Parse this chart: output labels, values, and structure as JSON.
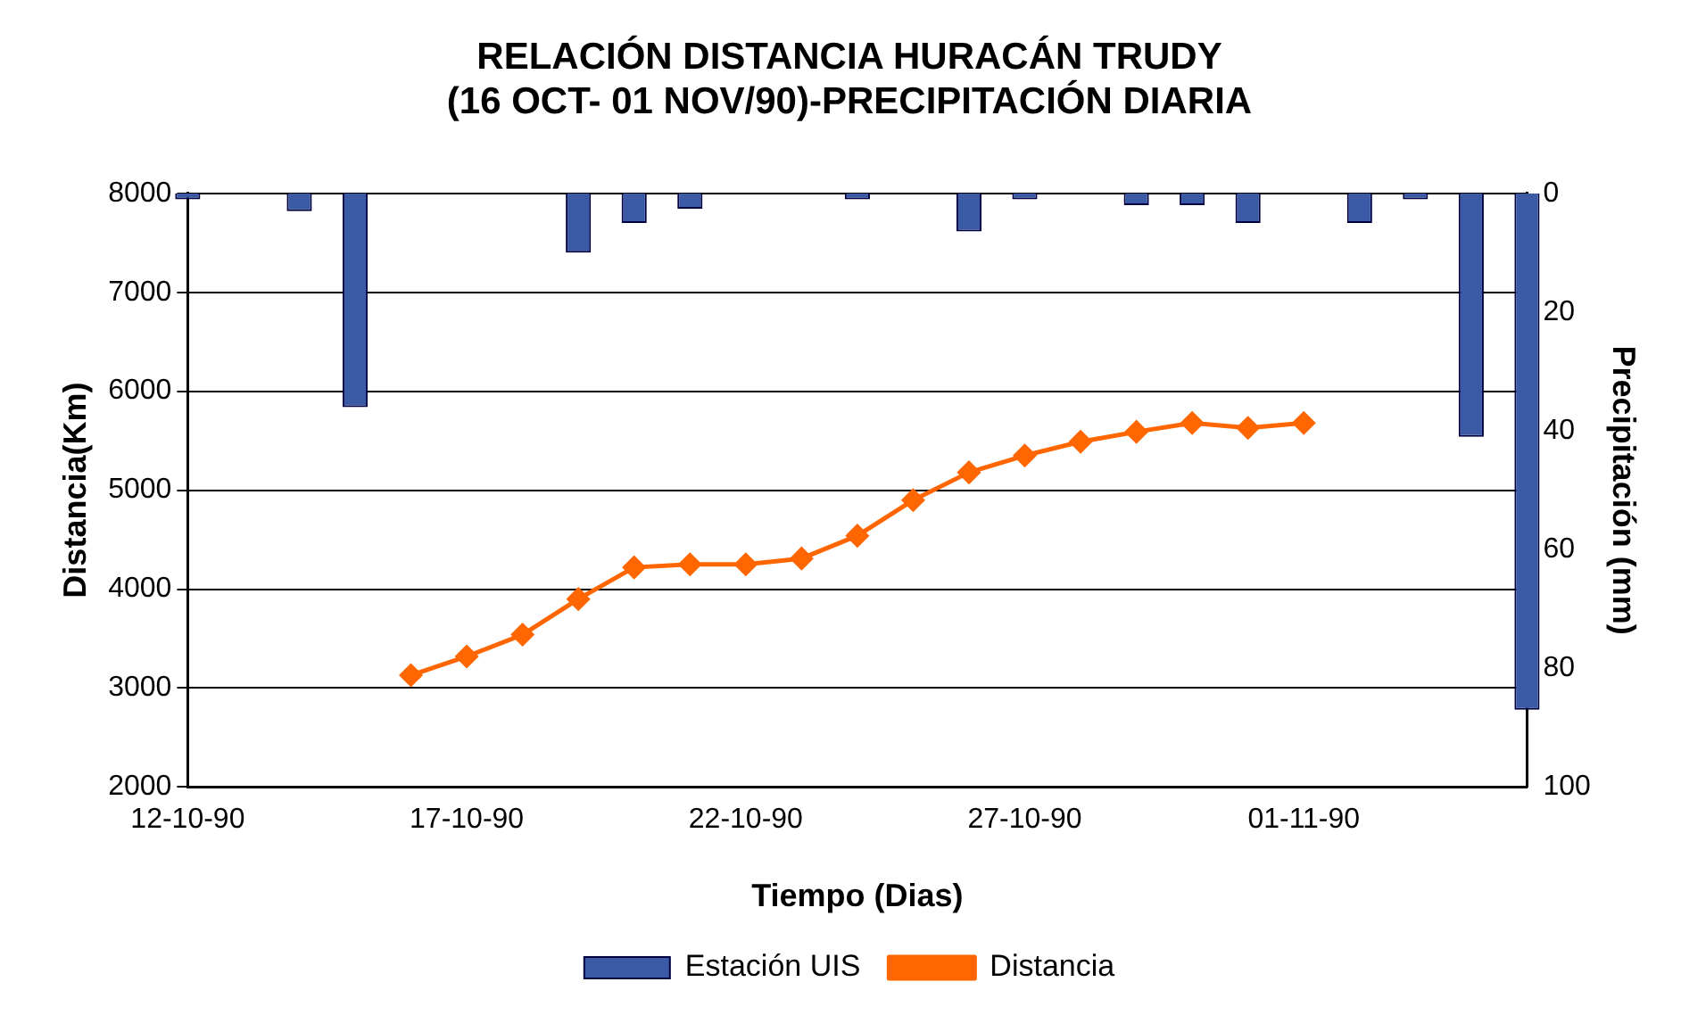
{
  "chart_data": {
    "type": "line",
    "title": "RELACIÓN DISTANCIA HURACÁN TRUDY\n(16 OCT- 01 NOV/90)-PRECIPITACIÓN DIARIA",
    "xlabel": "Tiempo (Dias)",
    "ylabel": "Distancia(Km)",
    "y2label": "Precipitación (mm)",
    "xlim": [
      "1990-10-12",
      "1990-11-05"
    ],
    "xticks": [
      {
        "value": "1990-10-12",
        "label": "12-10-90"
      },
      {
        "value": "1990-10-17",
        "label": "17-10-90"
      },
      {
        "value": "1990-10-22",
        "label": "22-10-90"
      },
      {
        "value": "1990-10-27",
        "label": "27-10-90"
      },
      {
        "value": "1990-11-01",
        "label": "01-11-90"
      }
    ],
    "ylim": [
      2000,
      8000
    ],
    "yticks": [
      2000,
      3000,
      4000,
      5000,
      6000,
      7000,
      8000
    ],
    "y2lim": [
      100,
      0
    ],
    "y2ticks": [
      0,
      20,
      40,
      60,
      80,
      100
    ],
    "grid": "y",
    "legend": "bottom",
    "marker": "diamond",
    "series": [
      {
        "name": "Estación UIS",
        "type": "bar",
        "axis": "y2",
        "color": "#3b5aa6",
        "x": [
          "1990-10-12",
          "1990-10-13",
          "1990-10-14",
          "1990-10-15",
          "1990-10-16",
          "1990-10-17",
          "1990-10-18",
          "1990-10-19",
          "1990-10-20",
          "1990-10-21",
          "1990-10-22",
          "1990-10-23",
          "1990-10-24",
          "1990-10-25",
          "1990-10-26",
          "1990-10-27",
          "1990-10-28",
          "1990-10-29",
          "1990-10-30",
          "1990-10-31",
          "1990-11-01",
          "1990-11-02",
          "1990-11-03",
          "1990-11-04",
          "1990-11-05"
        ],
        "values": [
          1,
          0,
          3,
          36,
          0,
          0,
          0,
          10,
          5,
          2.6,
          0,
          0,
          1,
          0,
          6.4,
          1,
          0,
          2,
          2,
          5,
          0,
          5,
          1,
          41,
          87
        ]
      },
      {
        "name": "Distancia",
        "color": "#ff6600",
        "x": [
          "1990-10-16",
          "1990-10-17",
          "1990-10-18",
          "1990-10-19",
          "1990-10-20",
          "1990-10-21",
          "1990-10-22",
          "1990-10-23",
          "1990-10-24",
          "1990-10-25",
          "1990-10-26",
          "1990-10-27",
          "1990-10-28",
          "1990-10-29",
          "1990-10-30",
          "1990-10-31",
          "1990-11-01"
        ],
        "values": [
          3130,
          3320,
          3540,
          3900,
          4220,
          4250,
          4250,
          4310,
          4540,
          4900,
          5180,
          5350,
          5490,
          5590,
          5680,
          5630,
          5680
        ]
      }
    ]
  }
}
